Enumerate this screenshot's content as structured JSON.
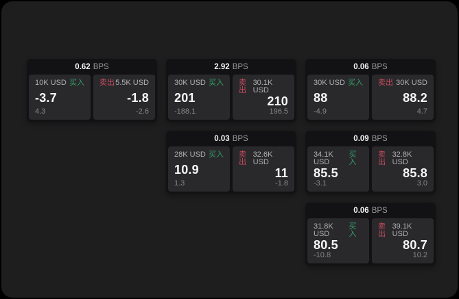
{
  "labels": {
    "bps_unit": "BPS",
    "buy": "买入",
    "sell": "卖出"
  },
  "colors": {
    "buy_accent": "#35a06a",
    "sell_accent": "#c94b60",
    "page_bg": "#000000",
    "panel_bg": "#1e1e1f",
    "card_bg": "#121214",
    "tile_bg": "#29292b"
  },
  "cards": [
    {
      "bps": "0.62",
      "buy": {
        "amount": "10K USD",
        "price": "-3.7",
        "change": "4.3"
      },
      "sell": {
        "amount": "5.5K USD",
        "price": "-1.8",
        "change": "-2.6"
      }
    },
    {
      "bps": "2.92",
      "buy": {
        "amount": "30K USD",
        "price": "201",
        "change": "-188.1"
      },
      "sell": {
        "amount": "30.1K USD",
        "price": "210",
        "change": "196.5"
      }
    },
    {
      "bps": "0.06",
      "buy": {
        "amount": "30K USD",
        "price": "88",
        "change": "-4.9"
      },
      "sell": {
        "amount": "30K USD",
        "price": "88.2",
        "change": "4.7"
      }
    },
    {
      "bps": "0.03",
      "buy": {
        "amount": "28K USD",
        "price": "10.9",
        "change": "1.3"
      },
      "sell": {
        "amount": "32.6K USD",
        "price": "11",
        "change": "-1.8"
      }
    },
    {
      "bps": "0.09",
      "buy": {
        "amount": "34.1K USD",
        "price": "85.5",
        "change": "-3.1"
      },
      "sell": {
        "amount": "32.8K USD",
        "price": "85.8",
        "change": "3.0"
      }
    },
    {
      "bps": "0.06",
      "buy": {
        "amount": "31.8K USD",
        "price": "80.5",
        "change": "-10.8"
      },
      "sell": {
        "amount": "39.1K USD",
        "price": "80.7",
        "change": "10.2"
      }
    }
  ]
}
